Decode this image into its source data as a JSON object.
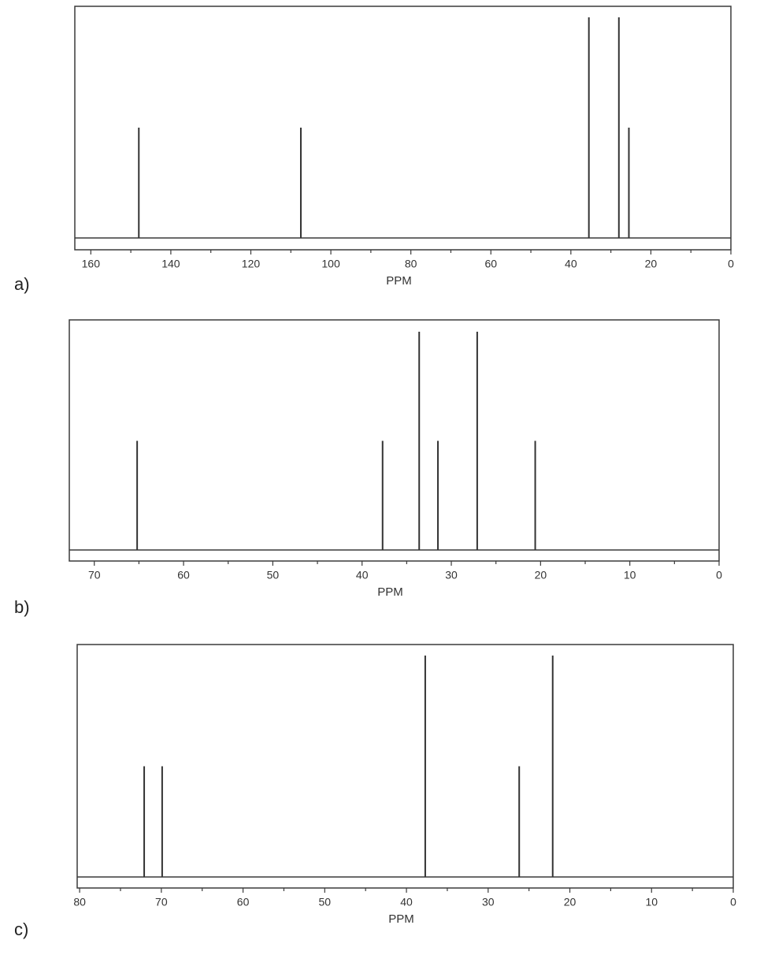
{
  "chart_data": [
    {
      "type": "bar",
      "panel_label": "a)",
      "xlabel": "PPM",
      "xlim": [
        164,
        0
      ],
      "x_reversed": true,
      "tick_labels": [
        "160",
        "140",
        "120",
        "100",
        "80",
        "60",
        "40",
        "20",
        "0"
      ],
      "tick_values": [
        160,
        140,
        120,
        100,
        80,
        60,
        40,
        20,
        0
      ],
      "minor_tick_values": [
        150,
        130,
        110,
        90,
        70,
        50,
        30,
        10
      ],
      "ylim": [
        0,
        1
      ],
      "peaks": [
        {
          "x": 148,
          "height": 0.5
        },
        {
          "x": 107.5,
          "height": 0.5
        },
        {
          "x": 35.5,
          "height": 1.0
        },
        {
          "x": 28,
          "height": 1.0
        },
        {
          "x": 25.5,
          "height": 0.5
        }
      ]
    },
    {
      "type": "bar",
      "panel_label": "b)",
      "xlabel": "PPM",
      "xlim": [
        72.8,
        0
      ],
      "x_reversed": true,
      "tick_labels": [
        "70",
        "60",
        "50",
        "40",
        "30",
        "20",
        "10",
        "0"
      ],
      "tick_values": [
        70,
        60,
        50,
        40,
        30,
        20,
        10,
        0
      ],
      "minor_tick_values": [
        65,
        55,
        45,
        35,
        25,
        15,
        5
      ],
      "ylim": [
        0,
        1
      ],
      "peaks": [
        {
          "x": 65.2,
          "height": 0.5
        },
        {
          "x": 37.7,
          "height": 0.5
        },
        {
          "x": 33.6,
          "height": 1.0
        },
        {
          "x": 31.5,
          "height": 0.5
        },
        {
          "x": 27.1,
          "height": 1.0
        },
        {
          "x": 20.6,
          "height": 0.5
        }
      ]
    },
    {
      "type": "bar",
      "panel_label": "c)",
      "xlabel": "PPM",
      "xlim": [
        80.3,
        0
      ],
      "x_reversed": true,
      "tick_labels": [
        "80",
        "70",
        "60",
        "50",
        "40",
        "30",
        "20",
        "10",
        "0"
      ],
      "tick_values": [
        80,
        70,
        60,
        50,
        40,
        30,
        20,
        10,
        0
      ],
      "minor_tick_values": [
        75,
        65,
        55,
        45,
        35,
        25,
        15,
        5
      ],
      "ylim": [
        0,
        1
      ],
      "peaks": [
        {
          "x": 72.1,
          "height": 0.5
        },
        {
          "x": 69.9,
          "height": 0.5
        },
        {
          "x": 37.7,
          "height": 1.0
        },
        {
          "x": 26.2,
          "height": 0.5
        },
        {
          "x": 22.1,
          "height": 1.0
        }
      ]
    }
  ]
}
